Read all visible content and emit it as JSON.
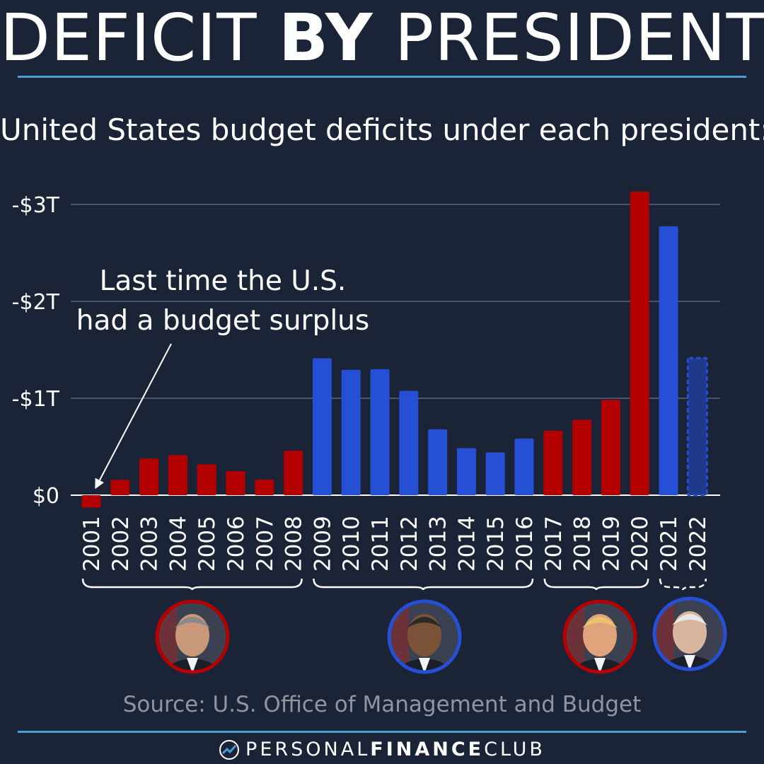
{
  "header": {
    "title_part1": "DEFICIT ",
    "title_bold": "BY",
    "title_part2": " PRESIDENT",
    "subtitle": "United States budget deficits under each president:"
  },
  "annotation": {
    "line1": "Last time the U.S.",
    "line2": "had a budget surplus"
  },
  "source": "Source: U.S. Office of Management and Budget",
  "footer": {
    "brand_light1": "PERSONAL",
    "brand_bold": "FINANCE",
    "brand_light2": "CLUB",
    "logo_icon": "chart-arrow-icon"
  },
  "colors": {
    "background": "#1a2436",
    "republican": "#b30000",
    "democrat": "#2550d6",
    "projected_fill": "#1f3a8a",
    "grid": "#4a5366",
    "accent_rule": "#4a9ed6"
  },
  "presidents": [
    {
      "party": "republican",
      "start_year": "2001",
      "end_year": "2008",
      "portrait_icon": "portrait-bush"
    },
    {
      "party": "democrat",
      "start_year": "2009",
      "end_year": "2016",
      "portrait_icon": "portrait-obama"
    },
    {
      "party": "republican",
      "start_year": "2017",
      "end_year": "2020",
      "portrait_icon": "portrait-trump"
    },
    {
      "party": "democrat",
      "start_year": "2021",
      "end_year": "2022",
      "portrait_icon": "portrait-biden"
    }
  ],
  "chart_data": {
    "type": "bar",
    "title": "United States budget deficits under each president:",
    "categories": [
      "2001",
      "2002",
      "2003",
      "2004",
      "2005",
      "2006",
      "2007",
      "2008",
      "2009",
      "2010",
      "2011",
      "2012",
      "2013",
      "2014",
      "2015",
      "2016",
      "2017",
      "2018",
      "2019",
      "2020",
      "2021",
      "2022"
    ],
    "values": [
      -0.128,
      0.158,
      0.378,
      0.413,
      0.318,
      0.248,
      0.161,
      0.459,
      1.413,
      1.294,
      1.3,
      1.077,
      0.68,
      0.485,
      0.442,
      0.585,
      0.665,
      0.779,
      0.984,
      3.132,
      2.775,
      1.415
    ],
    "value_units": "deficit in trillions of USD (negative = surplus)",
    "party": [
      "republican",
      "republican",
      "republican",
      "republican",
      "republican",
      "republican",
      "republican",
      "republican",
      "democrat",
      "democrat",
      "democrat",
      "democrat",
      "democrat",
      "democrat",
      "democrat",
      "democrat",
      "republican",
      "republican",
      "republican",
      "republican",
      "democrat",
      "democrat"
    ],
    "projected": [
      false,
      false,
      false,
      false,
      false,
      false,
      false,
      false,
      false,
      false,
      false,
      false,
      false,
      false,
      false,
      false,
      false,
      false,
      false,
      false,
      false,
      true
    ],
    "yticks": [
      0,
      1,
      2,
      3
    ],
    "ytick_labels": [
      "$0",
      "-$1T",
      "-$2T",
      "-$3T"
    ],
    "ylim": [
      -0.15,
      3.2
    ],
    "grid": true,
    "legend": "none"
  }
}
